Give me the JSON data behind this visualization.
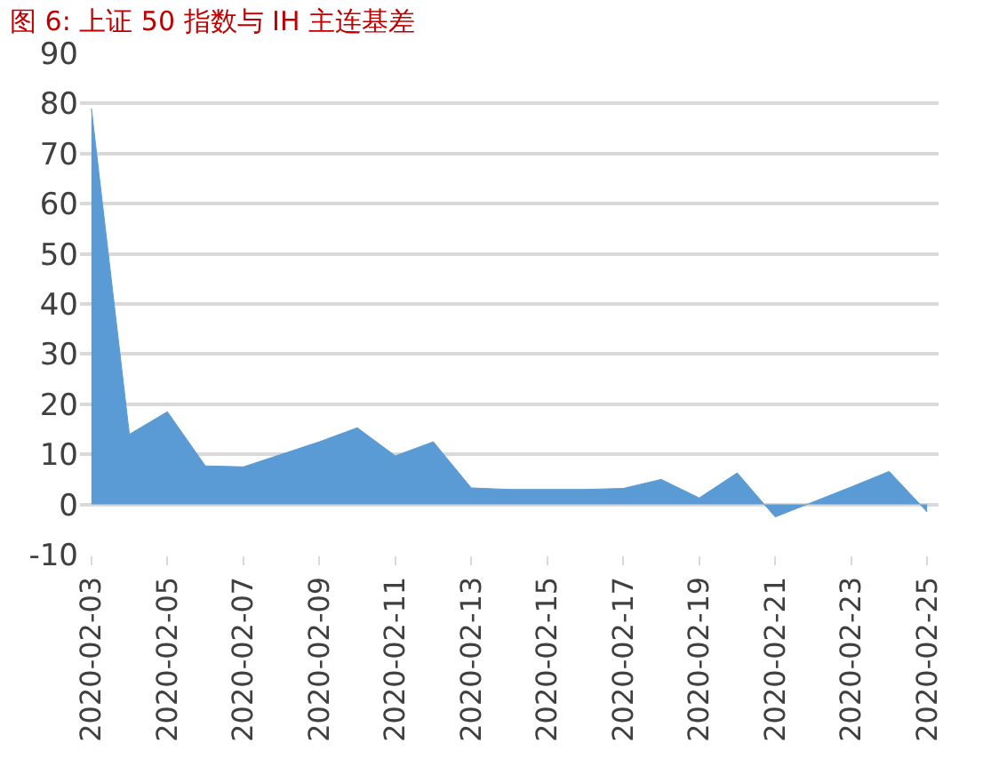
{
  "chart_data": {
    "type": "area",
    "title": "图 6: 上证 50 指数与 IH 主连基差",
    "categories": [
      "2020-02-03",
      null,
      "2020-02-05",
      null,
      "2020-02-07",
      null,
      "2020-02-09",
      null,
      "2020-02-11",
      null,
      "2020-02-13",
      null,
      "2020-02-15",
      null,
      "2020-02-17",
      null,
      "2020-02-19",
      null,
      "2020-02-21",
      null,
      "2020-02-23",
      null,
      "2020-02-25"
    ],
    "values": [
      79,
      14,
      18.5,
      7.7,
      7.5,
      10,
      12.5,
      15.3,
      9.7,
      12.5,
      3.3,
      3,
      3,
      3,
      3.2,
      5,
      1.3,
      6.3,
      -2.5,
      0.5,
      3.5,
      6.6,
      -1.5
    ],
    "color": "#5b9bd5",
    "ylim": [
      -10,
      90
    ],
    "yticks": [
      -10,
      0,
      10,
      20,
      30,
      40,
      50,
      60,
      70,
      80,
      90
    ],
    "grid": "y"
  }
}
